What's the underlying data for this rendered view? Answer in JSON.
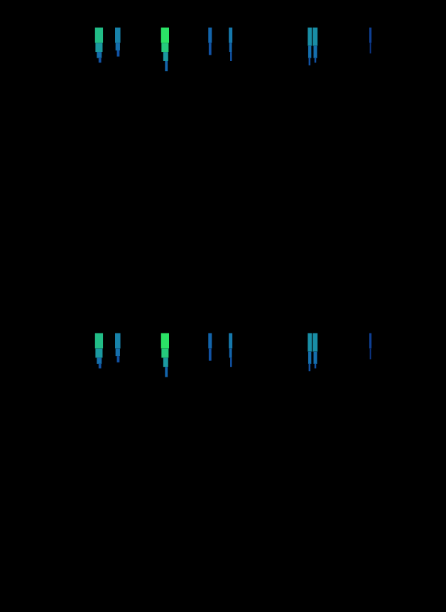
{
  "chart_data": [
    {
      "type": "heatmap",
      "xlim": [
        0,
        100
      ],
      "ylim": [
        0,
        100
      ],
      "tick_labels": false,
      "grid": false,
      "color_range": [
        0,
        1
      ],
      "cells": [
        [
          21.3,
          23.1,
          86,
          91,
          0.8
        ],
        [
          21.4,
          23.0,
          83,
          86,
          0.65
        ],
        [
          21.7,
          22.8,
          81,
          83,
          0.45
        ],
        [
          22.1,
          22.7,
          79.5,
          81,
          0.3
        ],
        [
          25.8,
          27.0,
          86,
          91,
          0.55
        ],
        [
          25.9,
          26.9,
          83.5,
          86,
          0.45
        ],
        [
          26.2,
          26.8,
          81.5,
          83.5,
          0.3
        ],
        [
          36.1,
          37.9,
          86,
          91,
          0.95
        ],
        [
          36.2,
          37.8,
          83,
          86,
          0.85
        ],
        [
          36.6,
          37.7,
          80,
          83,
          0.65
        ],
        [
          37.0,
          37.6,
          76.7,
          80,
          0.4
        ],
        [
          46.7,
          47.5,
          86,
          91,
          0.4
        ],
        [
          46.8,
          47.4,
          82,
          86,
          0.3
        ],
        [
          51.3,
          52.1,
          86,
          91,
          0.5
        ],
        [
          51.4,
          52.0,
          83,
          86,
          0.4
        ],
        [
          51.6,
          52.0,
          80,
          83,
          0.3
        ],
        [
          69.0,
          69.9,
          85,
          91,
          0.6
        ],
        [
          70.1,
          71.2,
          85,
          91,
          0.6
        ],
        [
          69.1,
          69.8,
          81,
          85,
          0.45
        ],
        [
          70.3,
          71.1,
          81,
          85,
          0.45
        ],
        [
          69.2,
          69.6,
          78.6,
          81,
          0.3
        ],
        [
          70.5,
          70.9,
          79.5,
          81,
          0.3
        ],
        [
          82.8,
          83.3,
          86,
          91,
          0.2
        ],
        [
          82.9,
          83.2,
          82.5,
          86,
          0.15
        ]
      ]
    },
    {
      "type": "heatmap",
      "xlim": [
        0,
        100
      ],
      "ylim": [
        0,
        100
      ],
      "tick_labels": false,
      "grid": false,
      "color_range": [
        0,
        1
      ],
      "cells": [
        [
          21.3,
          23.1,
          86,
          91,
          0.8
        ],
        [
          21.4,
          23.0,
          83,
          86,
          0.65
        ],
        [
          21.7,
          22.8,
          81,
          83,
          0.45
        ],
        [
          22.1,
          22.7,
          79.5,
          81,
          0.3
        ],
        [
          25.8,
          27.0,
          86,
          91,
          0.55
        ],
        [
          25.9,
          26.9,
          83.5,
          86,
          0.45
        ],
        [
          26.2,
          26.8,
          81.5,
          83.5,
          0.3
        ],
        [
          36.1,
          37.9,
          86,
          91,
          0.95
        ],
        [
          36.2,
          37.8,
          83,
          86,
          0.85
        ],
        [
          36.6,
          37.7,
          80,
          83,
          0.65
        ],
        [
          37.0,
          37.6,
          76.7,
          80,
          0.4
        ],
        [
          46.7,
          47.5,
          86,
          91,
          0.4
        ],
        [
          46.8,
          47.4,
          82,
          86,
          0.3
        ],
        [
          51.3,
          52.1,
          86,
          91,
          0.5
        ],
        [
          51.4,
          52.0,
          83,
          86,
          0.4
        ],
        [
          51.6,
          52.0,
          80,
          83,
          0.3
        ],
        [
          69.0,
          69.9,
          85,
          91,
          0.6
        ],
        [
          70.1,
          71.2,
          85,
          91,
          0.6
        ],
        [
          69.1,
          69.8,
          81,
          85,
          0.45
        ],
        [
          70.3,
          71.1,
          81,
          85,
          0.45
        ],
        [
          69.2,
          69.6,
          78.6,
          81,
          0.3
        ],
        [
          70.5,
          70.9,
          79.5,
          81,
          0.3
        ],
        [
          82.8,
          83.3,
          86,
          91,
          0.2
        ],
        [
          82.9,
          83.2,
          82.5,
          86,
          0.15
        ]
      ]
    }
  ]
}
